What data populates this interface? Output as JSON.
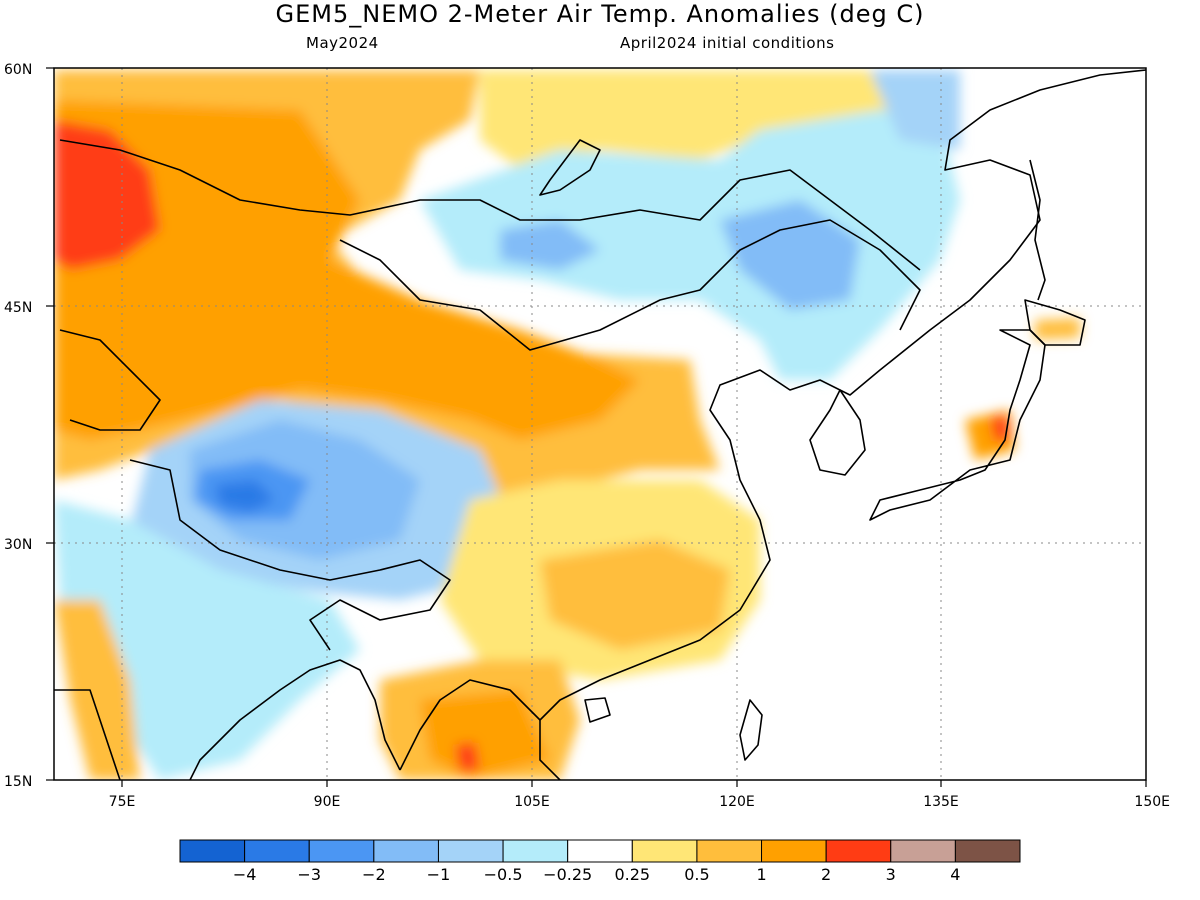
{
  "title": "GEM5_NEMO 2-Meter Air Temp. Anomalies (deg C)",
  "valid_month": "May2024",
  "init_conditions": "April2024 initial conditions",
  "lat_labels": [
    "60N",
    "45N",
    "30N",
    "15N"
  ],
  "lon_labels": [
    "75E",
    "90E",
    "105E",
    "120E",
    "135E",
    "150E"
  ],
  "map_extent": {
    "lon_min": 70,
    "lon_max": 150,
    "lat_min": 15,
    "lat_max": 60
  },
  "colorbar": {
    "colors": [
      "#1463d2",
      "#2a7ae6",
      "#4b96f3",
      "#82bcf7",
      "#a4d3f8",
      "#b4ecfa",
      "#ffffff",
      "#ffe676",
      "#ffbe3c",
      "#ffa000",
      "#ff3c14",
      "#c8a096",
      "#7d5346"
    ],
    "labels": [
      "-4",
      "-3",
      "-2",
      "-1",
      "-0.5",
      "-0.25",
      "0.25",
      "0.5",
      "1",
      "2",
      "3",
      "4"
    ]
  }
}
